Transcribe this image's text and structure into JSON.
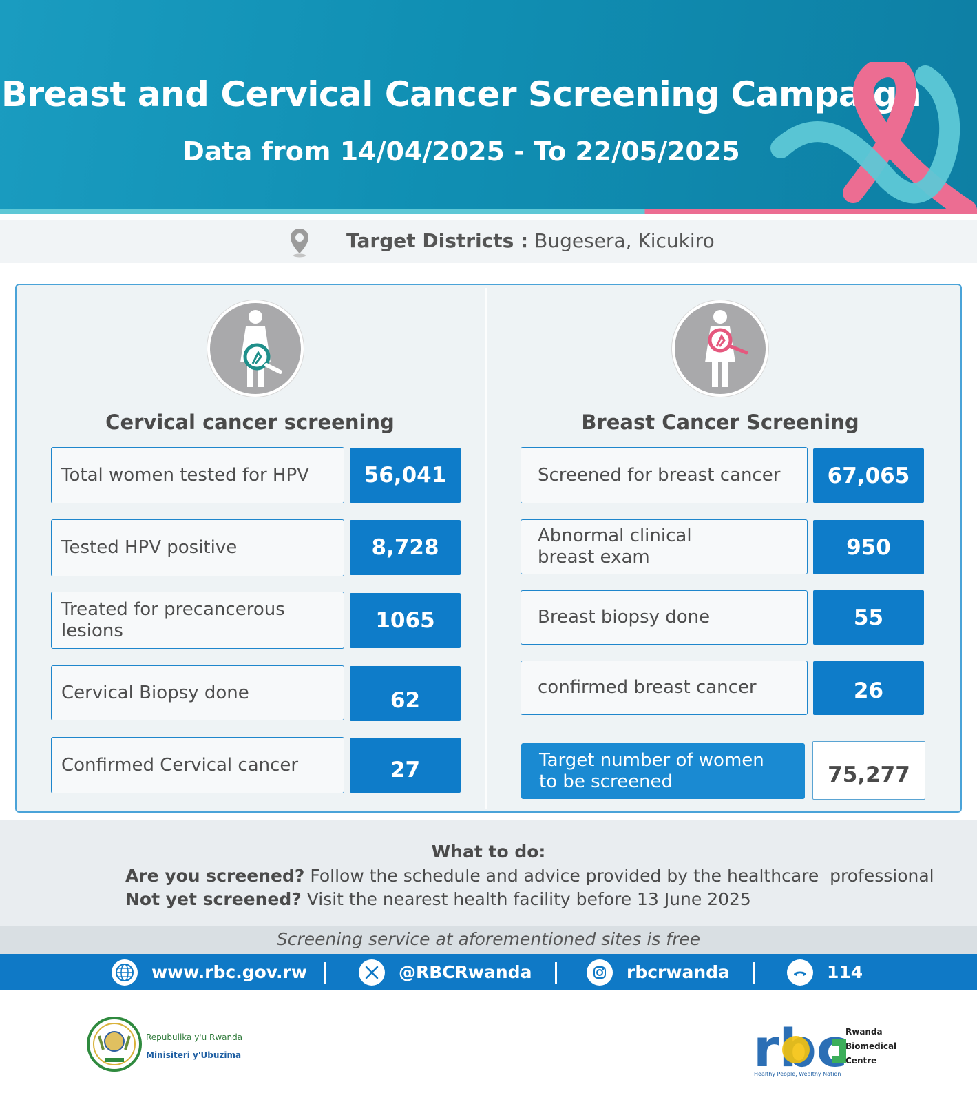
{
  "header": {
    "title": "Breast and Cervical Cancer Screening Campaign",
    "subtitle": "Data from 14/04/2025 - To 22/05/2025",
    "ribbon_icon": "awareness-ribbon-icon"
  },
  "districts": {
    "label": "Target Districts :",
    "value": "Bugesera, Kicukiro",
    "icon": "location-pin-icon"
  },
  "cervical": {
    "title": "Cervical cancer screening",
    "icon": "woman-cervical-magnifier-icon",
    "rows": [
      {
        "label": "Total women tested for HPV",
        "value": "56,041"
      },
      {
        "label": "Tested HPV positive",
        "value": "8,728"
      },
      {
        "label": "Treated for precancerous lesions",
        "value": "1065"
      },
      {
        "label": "Cervical Biopsy done",
        "value": "62"
      },
      {
        "label": "Confirmed Cervical cancer",
        "value": "27"
      }
    ]
  },
  "breast": {
    "title": "Breast Cancer Screening",
    "icon": "woman-breast-magnifier-icon",
    "rows": [
      {
        "label": "Screened for breast cancer",
        "value": "67,065"
      },
      {
        "label_line1": "Abnormal clinical",
        "label_line2": "breast exam",
        "value": "950"
      },
      {
        "label": "Breast biopsy done",
        "value": "55"
      },
      {
        "label": "confirmed breast cancer",
        "value": "26"
      }
    ],
    "target": {
      "label_line1": "Target number of women",
      "label_line2": "to be screened",
      "value": "75,277"
    }
  },
  "todo": {
    "title": "What to do:",
    "line1_bold": "Are you screened?",
    "line1_text": " Follow the schedule and advice provided by the healthcare  professional",
    "line2_bold": "Not yet screened?",
    "line2_text": " Visit the nearest health facility before 13 June 2025",
    "free_note": "Screening service at aforementioned sites is free"
  },
  "contact": {
    "website": "www.rbc.gov.rw",
    "twitter": "@RBCRwanda",
    "instagram": "rbcrwanda",
    "phone": "114"
  },
  "footer": {
    "gov_line1": "Repubulika y'u Rwanda",
    "gov_line2": "Minisiteri y'Ubuzima",
    "rbc_letters": "rbc",
    "rbc_name1": "Rwanda",
    "rbc_name2": "Biomedical",
    "rbc_name3": "Centre",
    "rbc_tagline": "Healthy People, Wealthy Nation"
  },
  "colors": {
    "header_blue": "#108fb3",
    "accent_blue": "#0e7cc9",
    "ribbon_teal": "#5ec8d6",
    "ribbon_pink": "#ec6d92"
  }
}
